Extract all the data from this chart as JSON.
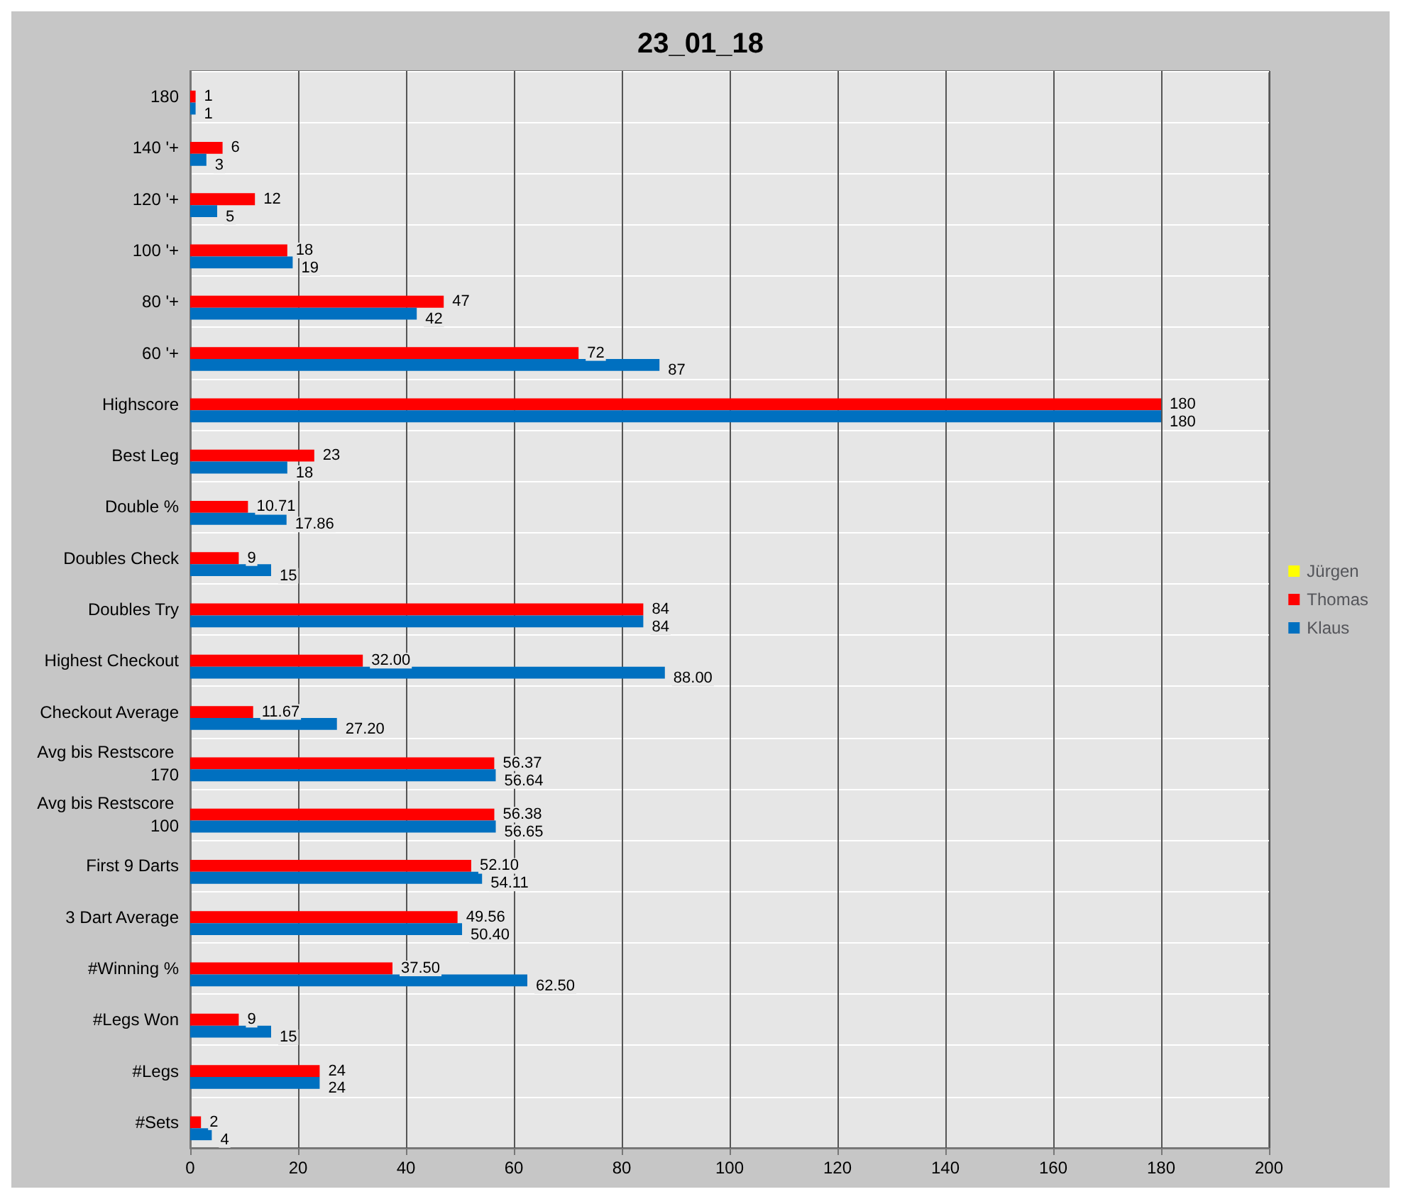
{
  "chart_data": {
    "type": "bar",
    "orientation": "horizontal",
    "title": "23_01_18",
    "categories": [
      "180",
      "140 '+",
      "120 '+",
      "100 '+",
      "80 '+",
      "60 '+",
      "Highscore",
      "Best Leg",
      "Double %",
      "Doubles Check",
      "Doubles Try",
      "Highest Checkout",
      "Checkout Average",
      "Avg bis Restscore 170",
      "Avg bis Restscore 100",
      "First 9 Darts",
      "3 Dart Average",
      "#Winning %",
      "#Legs Won",
      "#Legs",
      "#Sets"
    ],
    "series": [
      {
        "name": "Jürgen",
        "color": "#ffff00",
        "values": [
          null,
          null,
          null,
          null,
          null,
          null,
          null,
          null,
          null,
          null,
          null,
          null,
          null,
          null,
          null,
          null,
          null,
          null,
          null,
          null,
          null
        ]
      },
      {
        "name": "Thomas",
        "color": "#ff0000",
        "values": [
          1,
          6,
          12,
          18,
          47,
          72,
          180,
          23,
          10.71,
          9,
          84,
          32.0,
          11.67,
          56.37,
          56.38,
          52.1,
          49.56,
          37.5,
          9,
          24,
          2
        ],
        "value_labels": [
          "1",
          "6",
          "12",
          "18",
          "47",
          "72",
          "180",
          "23",
          "10.71",
          "9",
          "84",
          "32.00",
          "11.67",
          "56.37",
          "56.38",
          "52.10",
          "49.56",
          "37.50",
          "9",
          "24",
          "2"
        ]
      },
      {
        "name": "Klaus",
        "color": "#0070c0",
        "values": [
          1,
          3,
          5,
          19,
          42,
          87,
          180,
          18,
          17.86,
          15,
          84,
          88.0,
          27.2,
          56.64,
          56.65,
          54.11,
          50.4,
          62.5,
          15,
          24,
          4
        ],
        "value_labels": [
          "1",
          "3",
          "5",
          "19",
          "42",
          "87",
          "180",
          "18",
          "17.86",
          "15",
          "84",
          "88.00",
          "27.20",
          "56.64",
          "56.65",
          "54.11",
          "50.40",
          "62.50",
          "15",
          "24",
          "4"
        ]
      }
    ],
    "xlim": [
      0,
      200
    ],
    "xticks": [
      0,
      20,
      40,
      60,
      80,
      100,
      120,
      140,
      160,
      180,
      200
    ],
    "grid": true,
    "legend": "right"
  }
}
